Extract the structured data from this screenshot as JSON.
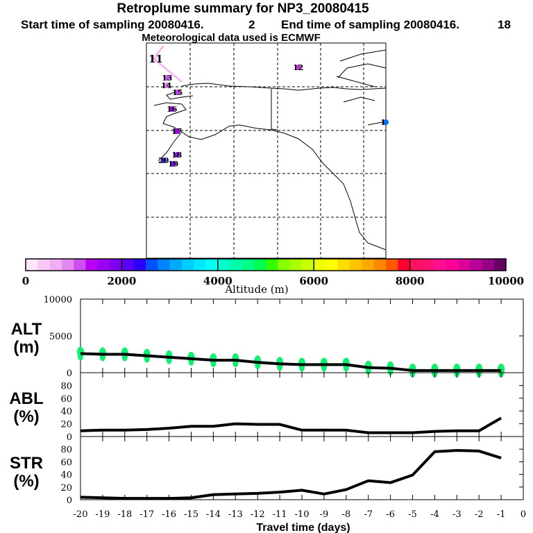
{
  "header": {
    "title": "Retroplume summary for NP3_20080415",
    "start_label": "Start time of sampling 20080416.",
    "start_value": "2",
    "end_label": "End time of sampling 20080416.",
    "end_value": "18",
    "met": "Meteorological data used is ECMWF"
  },
  "map": {
    "day_labels": [
      "11",
      "12",
      "13",
      "14",
      "15",
      "16",
      "17",
      "18",
      "19",
      "20",
      "1"
    ],
    "day_colors": [
      "#f3b0f5",
      "#cc33e8",
      "#d055ee",
      "#e080f0",
      "#c040e8",
      "#a000f0",
      "#a000f0",
      "#9010f0",
      "#7010f0",
      "#4020ff",
      "#0070ff"
    ]
  },
  "colorbar": {
    "title": "Altitude (m)",
    "tick_labels": [
      "0",
      "2000",
      "4000",
      "6000",
      "8000",
      "10000"
    ],
    "colors": [
      "#ffe6fa",
      "#f9c8f7",
      "#f2aef4",
      "#e38af1",
      "#cf4ef0",
      "#b800f5",
      "#9a00f2",
      "#7d00f0",
      "#5a00f7",
      "#2a00ff",
      "#0052ff",
      "#0084ff",
      "#00aaff",
      "#00ccff",
      "#00e8ff",
      "#00fff2",
      "#00ffcc",
      "#00ffaa",
      "#00ff88",
      "#00ff55",
      "#33ff00",
      "#88ff00",
      "#aaff00",
      "#ccff00",
      "#eeff00",
      "#ffff00",
      "#ffdd00",
      "#ffc400",
      "#ffaa00",
      "#ff8800",
      "#ff5a00",
      "#ff0033",
      "#ff1060",
      "#ff1070",
      "#ff1090",
      "#ff0099",
      "#dd0099",
      "#bb0099",
      "#990088",
      "#660066"
    ]
  },
  "chart_data": [
    {
      "type": "line",
      "name": "ALT",
      "ylabel": "ALT\n(m)",
      "ylabel_top": "ALT",
      "ylabel_unit": "(m)",
      "ylim": [
        0,
        10000
      ],
      "yticks": [
        "0",
        "5000",
        "10000"
      ],
      "ytick_values": [
        0,
        5000,
        10000
      ],
      "x": [
        -20,
        -19,
        -18,
        -17,
        -16,
        -15,
        -14,
        -13,
        -12,
        -11,
        -10,
        -9,
        -8,
        -7,
        -6,
        -5,
        -4,
        -3,
        -2,
        -1
      ],
      "values": [
        2600,
        2500,
        2500,
        2300,
        2100,
        1900,
        1700,
        1700,
        1400,
        1200,
        1100,
        1100,
        1100,
        700,
        600,
        300,
        300,
        300,
        300,
        300
      ]
    },
    {
      "type": "line",
      "name": "ABL",
      "ylabel_top": "ABL",
      "ylabel_unit": "(%)",
      "ylim": [
        0,
        100
      ],
      "yticks": [
        "0",
        "20",
        "40",
        "60",
        "80"
      ],
      "ytick_values": [
        0,
        20,
        40,
        60,
        80
      ],
      "x": [
        -20,
        -19,
        -18,
        -17,
        -16,
        -15,
        -14,
        -13,
        -12,
        -11,
        -10,
        -9,
        -8,
        -7,
        -6,
        -5,
        -4,
        -3,
        -2,
        -1
      ],
      "values": [
        9,
        10,
        10,
        11,
        13,
        16,
        16,
        20,
        19,
        19,
        10,
        10,
        10,
        6,
        6,
        6,
        8,
        9,
        9,
        29
      ]
    },
    {
      "type": "line",
      "name": "STR",
      "ylabel_top": "STR",
      "ylabel_unit": "(%)",
      "ylim": [
        0,
        100
      ],
      "yticks": [
        "0",
        "20",
        "40",
        "60",
        "80"
      ],
      "ytick_values": [
        0,
        20,
        40,
        60,
        80
      ],
      "x": [
        -20,
        -19,
        -18,
        -17,
        -16,
        -15,
        -14,
        -13,
        -12,
        -11,
        -10,
        -9,
        -8,
        -7,
        -6,
        -5,
        -4,
        -3,
        -2,
        -1
      ],
      "values": [
        4,
        3,
        2,
        2,
        2,
        3,
        8,
        9,
        10,
        12,
        15,
        9,
        16,
        30,
        27,
        39,
        76,
        78,
        77,
        66
      ],
      "xlabel": "Travel time (days)",
      "xlim": [
        -20,
        0
      ],
      "xticks": [
        "-20",
        "-19",
        "-18",
        "-17",
        "-16",
        "-15",
        "-14",
        "-13",
        "-12",
        "-11",
        "-10",
        "-9",
        "-8",
        "-7",
        "-6",
        "-5",
        "-4",
        "-3",
        "-2",
        "-1",
        "0"
      ]
    }
  ]
}
